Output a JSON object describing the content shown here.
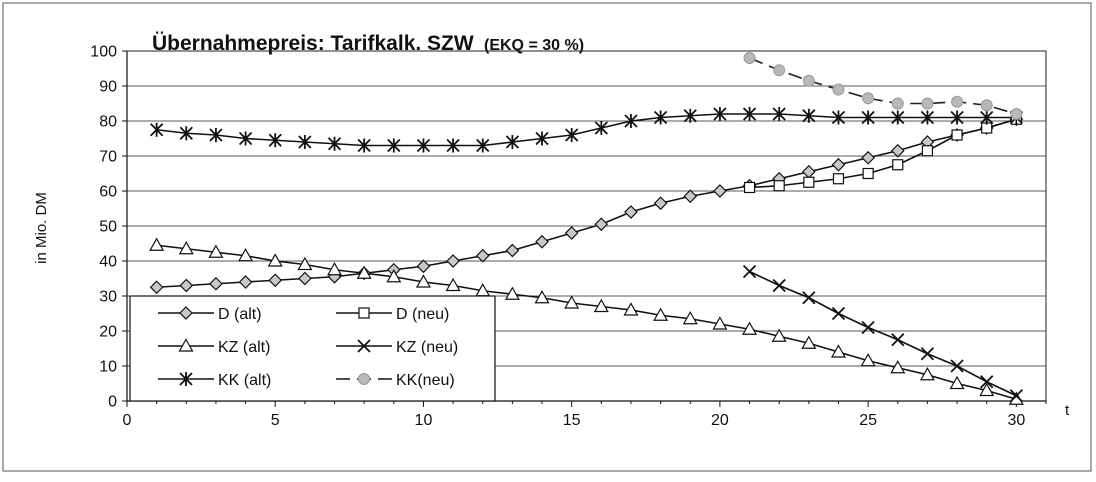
{
  "chart_data": {
    "type": "line",
    "title": "Übernahmepreis: Tarifkalk. SZW",
    "subtitle": "(EKQ = 30 %)",
    "xlabel": "t",
    "ylabel": "in Mio. DM",
    "xlim": [
      0,
      31
    ],
    "ylim": [
      0,
      100
    ],
    "x_ticks": [
      0,
      5,
      10,
      15,
      20,
      25,
      30
    ],
    "y_ticks": [
      0,
      10,
      20,
      30,
      40,
      50,
      60,
      70,
      80,
      90,
      100
    ],
    "grid": "horizontal",
    "legend_position": "bottom-left",
    "series": [
      {
        "name": "D (alt)",
        "marker": "diamond",
        "marker_fill": "#c8c8c8",
        "x": [
          1,
          2,
          3,
          4,
          5,
          6,
          7,
          8,
          9,
          10,
          11,
          12,
          13,
          14,
          15,
          16,
          17,
          18,
          19,
          20,
          21,
          22,
          23,
          24,
          25,
          26,
          27,
          28,
          29,
          30
        ],
        "values": [
          32.5,
          33,
          33.5,
          34,
          34.5,
          35,
          35.5,
          36.5,
          37.5,
          38.5,
          40,
          41.5,
          43,
          45.5,
          48,
          50.5,
          54,
          56.5,
          58.5,
          60,
          61.5,
          63.5,
          65.5,
          67.5,
          69.5,
          71.5,
          74,
          76,
          78,
          80.5
        ]
      },
      {
        "name": "D (neu)",
        "marker": "square",
        "marker_fill": "#ffffff",
        "x": [
          21,
          22,
          23,
          24,
          25,
          26,
          27,
          28,
          29,
          30
        ],
        "values": [
          61,
          61.5,
          62.5,
          63.5,
          65,
          67.5,
          71.5,
          76,
          78,
          80.5
        ]
      },
      {
        "name": "KZ (alt)",
        "marker": "triangle",
        "marker_fill": "#ffffff",
        "x": [
          1,
          2,
          3,
          4,
          5,
          6,
          7,
          8,
          9,
          10,
          11,
          12,
          13,
          14,
          15,
          16,
          17,
          18,
          19,
          20,
          21,
          22,
          23,
          24,
          25,
          26,
          27,
          28,
          29,
          30
        ],
        "values": [
          44.5,
          43.5,
          42.5,
          41.5,
          40,
          39,
          37.5,
          36.5,
          35.5,
          34,
          33,
          31.5,
          30.5,
          29.5,
          28,
          27,
          26,
          24.5,
          23.5,
          22,
          20.5,
          18.5,
          16.5,
          14,
          11.5,
          9.5,
          7.5,
          5,
          3,
          0.5
        ]
      },
      {
        "name": "KZ (neu)",
        "marker": "x",
        "marker_fill": "none",
        "x": [
          21,
          22,
          23,
          24,
          25,
          26,
          27,
          28,
          29,
          30
        ],
        "values": [
          37,
          33,
          29.5,
          25,
          21,
          17.5,
          13.5,
          10,
          5.5,
          1.5
        ]
      },
      {
        "name": "KK (alt)",
        "marker": "star",
        "marker_fill": "none",
        "x": [
          1,
          2,
          3,
          4,
          5,
          6,
          7,
          8,
          9,
          10,
          11,
          12,
          13,
          14,
          15,
          16,
          17,
          18,
          19,
          20,
          21,
          22,
          23,
          24,
          25,
          26,
          27,
          28,
          29,
          30
        ],
        "values": [
          77.5,
          76.5,
          76,
          75,
          74.5,
          74,
          73.5,
          73,
          73,
          73,
          73,
          73,
          74,
          75,
          76,
          78,
          80,
          81,
          81.5,
          82,
          82,
          82,
          81.5,
          81,
          81,
          81,
          81,
          81,
          81,
          81
        ]
      },
      {
        "name": "KK(neu)",
        "marker": "circle",
        "marker_fill": "#b8b8b8",
        "line_style": "dashed",
        "x": [
          21,
          22,
          23,
          24,
          25,
          26,
          27,
          28,
          29,
          30
        ],
        "values": [
          98,
          94.5,
          91.5,
          89,
          86.5,
          85,
          85,
          85.5,
          84.5,
          82
        ]
      }
    ]
  }
}
